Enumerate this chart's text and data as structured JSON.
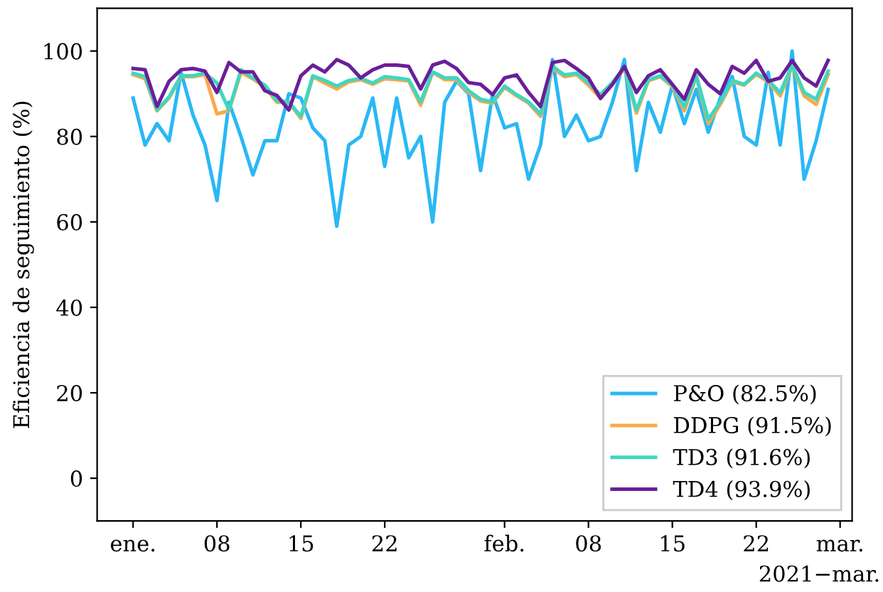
{
  "chart_data": {
    "type": "line",
    "ylabel": "Eficiencia de seguimiento (%)",
    "x": [
      "2021-01-01",
      "2021-01-02",
      "2021-01-03",
      "2021-01-04",
      "2021-01-05",
      "2021-01-06",
      "2021-01-07",
      "2021-01-08",
      "2021-01-09",
      "2021-01-10",
      "2021-01-11",
      "2021-01-12",
      "2021-01-13",
      "2021-01-14",
      "2021-01-15",
      "2021-01-16",
      "2021-01-17",
      "2021-01-18",
      "2021-01-19",
      "2021-01-20",
      "2021-01-21",
      "2021-01-22",
      "2021-01-23",
      "2021-01-24",
      "2021-01-25",
      "2021-01-26",
      "2021-01-27",
      "2021-01-28",
      "2021-01-29",
      "2021-01-30",
      "2021-01-31",
      "2021-02-01",
      "2021-02-02",
      "2021-02-03",
      "2021-02-04",
      "2021-02-05",
      "2021-02-06",
      "2021-02-07",
      "2021-02-08",
      "2021-02-09",
      "2021-02-10",
      "2021-02-11",
      "2021-02-12",
      "2021-02-13",
      "2021-02-14",
      "2021-02-15",
      "2021-02-16",
      "2021-02-17",
      "2021-02-18",
      "2021-02-19",
      "2021-02-20",
      "2021-02-21",
      "2021-02-22",
      "2021-02-23",
      "2021-02-24",
      "2021-02-25",
      "2021-02-26",
      "2021-02-27",
      "2021-02-28"
    ],
    "series": [
      {
        "name": "P&O (82.5%)",
        "color": "#29b8f5",
        "values": [
          89,
          78,
          83,
          79,
          95,
          85,
          78,
          65,
          88,
          80,
          71,
          79,
          79,
          90,
          89,
          82,
          79,
          59,
          78,
          80,
          89,
          73,
          89,
          75,
          80,
          60,
          88,
          93,
          90,
          72,
          90,
          82,
          83,
          70,
          78,
          98,
          80,
          85,
          79,
          80,
          88,
          98,
          72,
          88,
          81,
          92,
          83,
          91,
          81,
          89,
          94,
          80,
          78,
          95,
          78,
          100,
          70,
          79,
          91
        ]
      },
      {
        "name": "DDPG (91.5%)",
        "color": "#f9a94b",
        "values": [
          94.5,
          93.5,
          86,
          89,
          94,
          94,
          94.5,
          85.3,
          86,
          95,
          93.5,
          91.5,
          88,
          88,
          84.2,
          94,
          92.5,
          91.1,
          92.8,
          93.3,
          92.2,
          93.5,
          93.3,
          93,
          87.3,
          95,
          93.3,
          93.3,
          90.3,
          88.3,
          87.8,
          91.5,
          89.5,
          87.8,
          84.7,
          96,
          94,
          94.5,
          92,
          89,
          92.3,
          96,
          85.5,
          93,
          94,
          91.7,
          86,
          94,
          83,
          87.5,
          92.8,
          92,
          94.5,
          92.8,
          89.5,
          96.5,
          89.5,
          87.5,
          94.5
        ]
      },
      {
        "name": "TD3 (91.6%)",
        "color": "#40d6c0",
        "values": [
          94.8,
          94,
          86.2,
          89.2,
          94.2,
          94.2,
          94.8,
          92.5,
          86.2,
          95.6,
          93.7,
          92,
          88.4,
          88.1,
          84.7,
          94.2,
          93.1,
          91.8,
          93.1,
          93.6,
          92.5,
          94,
          93.7,
          93.3,
          88.1,
          95.1,
          93.7,
          93.7,
          90.7,
          88.7,
          88.1,
          91.8,
          89.8,
          88.1,
          85.3,
          96.4,
          94.4,
          94.8,
          92.6,
          89.8,
          92.6,
          96.2,
          86.2,
          93.3,
          94.2,
          92,
          87,
          94.2,
          84,
          88.1,
          93.1,
          92.2,
          94.8,
          93.1,
          90.3,
          96.7,
          90.3,
          88.7,
          95.3
        ]
      },
      {
        "name": "TD4 (93.9%)",
        "color": "#6a1f9a",
        "values": [
          95.9,
          95.6,
          87,
          92.9,
          95.6,
          95.9,
          95.3,
          90.3,
          97.3,
          95.1,
          95.1,
          90.7,
          89.6,
          86.2,
          94.2,
          96.7,
          95.1,
          98,
          96.7,
          93.7,
          95.6,
          96.7,
          96.7,
          96.4,
          91.1,
          96.7,
          97.6,
          95.9,
          92.6,
          92.2,
          89.8,
          93.7,
          94.4,
          90.3,
          87,
          97.3,
          97.8,
          95.9,
          93.7,
          88.9,
          92.2,
          96.4,
          90.3,
          94.2,
          95.6,
          92.2,
          88.7,
          95.6,
          92.2,
          90,
          96.4,
          94.8,
          97.8,
          92.9,
          93.7,
          97.8,
          93.7,
          91.8,
          97.8
        ]
      }
    ],
    "xlim": [
      "2020-12-29",
      "2021-03-02"
    ],
    "xticks": [
      {
        "value": "2021-01-01",
        "label": "ene."
      },
      {
        "value": "2021-01-08",
        "label": "08"
      },
      {
        "value": "2021-01-15",
        "label": "15"
      },
      {
        "value": "2021-01-22",
        "label": "22"
      },
      {
        "value": "2021-02-01",
        "label": "feb."
      },
      {
        "value": "2021-02-08",
        "label": "08"
      },
      {
        "value": "2021-02-15",
        "label": "15"
      },
      {
        "value": "2021-02-22",
        "label": "22"
      },
      {
        "value": "2021-03-01",
        "label": "mar."
      }
    ],
    "ylim": [
      -10,
      110
    ],
    "yticks": [
      0,
      20,
      40,
      60,
      80,
      100
    ],
    "legend": "bottom right",
    "grid": false,
    "annotations": [
      "2021−mar."
    ]
  }
}
